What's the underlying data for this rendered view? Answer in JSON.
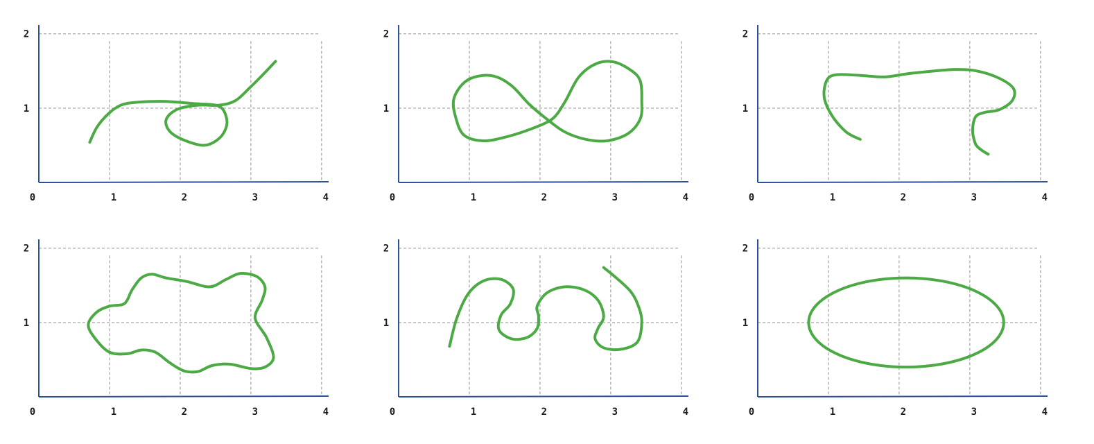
{
  "colors": {
    "curve": "#4caa45",
    "axis": "#2b4f9a",
    "grid": "#a8a8a8"
  },
  "chart_data": [
    {
      "type": "line",
      "xlim": [
        0,
        4.1
      ],
      "ylim": [
        0,
        2.1
      ],
      "grid": true,
      "x_ticks": [
        "0",
        "1",
        "2",
        "3",
        "4"
      ],
      "y_ticks": [
        "1",
        "2"
      ],
      "series": [
        {
          "closed": false,
          "points": [
            [
              0.72,
              0.54
            ],
            [
              0.82,
              0.74
            ],
            [
              0.98,
              0.92
            ],
            [
              1.16,
              1.04
            ],
            [
              1.4,
              1.08
            ],
            [
              1.8,
              1.09
            ],
            [
              2.2,
              1.06
            ],
            [
              2.5,
              1.04
            ],
            [
              2.62,
              0.96
            ],
            [
              2.66,
              0.78
            ],
            [
              2.56,
              0.6
            ],
            [
              2.35,
              0.5
            ],
            [
              2.08,
              0.56
            ],
            [
              1.86,
              0.68
            ],
            [
              1.8,
              0.84
            ],
            [
              1.95,
              0.98
            ],
            [
              2.25,
              1.04
            ],
            [
              2.55,
              1.04
            ],
            [
              2.78,
              1.1
            ],
            [
              2.98,
              1.27
            ],
            [
              3.16,
              1.44
            ],
            [
              3.35,
              1.63
            ]
          ]
        }
      ]
    },
    {
      "type": "line",
      "xlim": [
        0,
        4.1
      ],
      "ylim": [
        0,
        2.1
      ],
      "grid": true,
      "x_ticks": [
        "0",
        "1",
        "2",
        "3",
        "4"
      ],
      "y_ticks": [
        "1",
        "2"
      ],
      "series": [
        {
          "closed": true,
          "points": [
            [
              0.8,
              0.9
            ],
            [
              0.78,
              1.12
            ],
            [
              0.9,
              1.32
            ],
            [
              1.08,
              1.42
            ],
            [
              1.35,
              1.43
            ],
            [
              1.6,
              1.3
            ],
            [
              1.85,
              1.05
            ],
            [
              2.1,
              0.85
            ],
            [
              2.35,
              0.68
            ],
            [
              2.65,
              0.58
            ],
            [
              2.95,
              0.56
            ],
            [
              3.25,
              0.66
            ],
            [
              3.42,
              0.86
            ],
            [
              3.44,
              1.1
            ],
            [
              3.42,
              1.36
            ],
            [
              3.3,
              1.5
            ],
            [
              3.05,
              1.62
            ],
            [
              2.8,
              1.6
            ],
            [
              2.55,
              1.42
            ],
            [
              2.35,
              1.08
            ],
            [
              2.18,
              0.86
            ],
            [
              1.9,
              0.73
            ],
            [
              1.55,
              0.62
            ],
            [
              1.2,
              0.56
            ],
            [
              0.92,
              0.64
            ]
          ]
        }
      ]
    },
    {
      "type": "line",
      "xlim": [
        0,
        4.1
      ],
      "ylim": [
        0,
        2.1
      ],
      "grid": true,
      "x_ticks": [
        "0",
        "1",
        "2",
        "3",
        "4"
      ],
      "y_ticks": [
        "1",
        "2"
      ],
      "series": [
        {
          "closed": false,
          "points": [
            [
              1.45,
              0.58
            ],
            [
              1.25,
              0.68
            ],
            [
              1.05,
              0.9
            ],
            [
              0.94,
              1.15
            ],
            [
              0.98,
              1.38
            ],
            [
              1.12,
              1.45
            ],
            [
              1.45,
              1.44
            ],
            [
              1.8,
              1.42
            ],
            [
              2.1,
              1.46
            ],
            [
              2.5,
              1.5
            ],
            [
              2.8,
              1.52
            ],
            [
              3.1,
              1.5
            ],
            [
              3.42,
              1.4
            ],
            [
              3.62,
              1.26
            ],
            [
              3.6,
              1.1
            ],
            [
              3.42,
              0.98
            ],
            [
              3.2,
              0.94
            ],
            [
              3.08,
              0.88
            ],
            [
              3.04,
              0.7
            ],
            [
              3.08,
              0.52
            ],
            [
              3.16,
              0.44
            ],
            [
              3.26,
              0.38
            ]
          ]
        }
      ]
    },
    {
      "type": "line",
      "xlim": [
        0,
        4.1
      ],
      "ylim": [
        0,
        2.1
      ],
      "grid": true,
      "x_ticks": [
        "0",
        "1",
        "2",
        "3",
        "4"
      ],
      "y_ticks": [
        "1",
        "2"
      ],
      "series": [
        {
          "closed": true,
          "points": [
            [
              0.7,
              0.97
            ],
            [
              0.8,
              0.78
            ],
            [
              1.0,
              0.6
            ],
            [
              1.25,
              0.58
            ],
            [
              1.45,
              0.63
            ],
            [
              1.65,
              0.6
            ],
            [
              1.85,
              0.46
            ],
            [
              2.05,
              0.35
            ],
            [
              2.25,
              0.34
            ],
            [
              2.45,
              0.42
            ],
            [
              2.7,
              0.44
            ],
            [
              3.0,
              0.38
            ],
            [
              3.2,
              0.4
            ],
            [
              3.32,
              0.53
            ],
            [
              3.22,
              0.8
            ],
            [
              3.06,
              1.06
            ],
            [
              3.16,
              1.3
            ],
            [
              3.2,
              1.48
            ],
            [
              3.08,
              1.62
            ],
            [
              2.85,
              1.66
            ],
            [
              2.65,
              1.58
            ],
            [
              2.42,
              1.48
            ],
            [
              2.1,
              1.55
            ],
            [
              1.8,
              1.6
            ],
            [
              1.6,
              1.65
            ],
            [
              1.45,
              1.6
            ],
            [
              1.32,
              1.44
            ],
            [
              1.25,
              1.3
            ],
            [
              1.18,
              1.24
            ],
            [
              1.0,
              1.22
            ],
            [
              0.82,
              1.14
            ]
          ]
        }
      ]
    },
    {
      "type": "line",
      "xlim": [
        0,
        4.1
      ],
      "ylim": [
        0,
        2.1
      ],
      "grid": true,
      "x_ticks": [
        "0",
        "1",
        "2",
        "3",
        "4"
      ],
      "y_ticks": [
        "1",
        "2"
      ],
      "series": [
        {
          "closed": false,
          "points": [
            [
              0.72,
              0.68
            ],
            [
              0.82,
              1.05
            ],
            [
              0.98,
              1.38
            ],
            [
              1.2,
              1.56
            ],
            [
              1.45,
              1.58
            ],
            [
              1.62,
              1.45
            ],
            [
              1.58,
              1.25
            ],
            [
              1.45,
              1.1
            ],
            [
              1.42,
              0.9
            ],
            [
              1.6,
              0.78
            ],
            [
              1.82,
              0.8
            ],
            [
              1.96,
              0.92
            ],
            [
              1.98,
              1.08
            ],
            [
              1.96,
              1.22
            ],
            [
              2.1,
              1.4
            ],
            [
              2.35,
              1.48
            ],
            [
              2.62,
              1.44
            ],
            [
              2.82,
              1.3
            ],
            [
              2.9,
              1.08
            ],
            [
              2.82,
              0.92
            ],
            [
              2.78,
              0.78
            ],
            [
              2.9,
              0.66
            ],
            [
              3.15,
              0.64
            ],
            [
              3.38,
              0.74
            ],
            [
              3.44,
              1.02
            ],
            [
              3.38,
              1.25
            ],
            [
              3.28,
              1.42
            ],
            [
              3.08,
              1.6
            ],
            [
              2.9,
              1.74
            ]
          ]
        }
      ]
    },
    {
      "type": "line",
      "xlim": [
        0,
        4.1
      ],
      "ylim": [
        0,
        2.1
      ],
      "grid": true,
      "x_ticks": [
        "0",
        "1",
        "2",
        "3",
        "4"
      ],
      "y_ticks": [
        "1",
        "2"
      ],
      "series": [
        {
          "closed": true,
          "ellipse": true,
          "cx": 2.1,
          "cy": 1.0,
          "rx": 1.38,
          "ry": 0.6
        }
      ]
    }
  ]
}
